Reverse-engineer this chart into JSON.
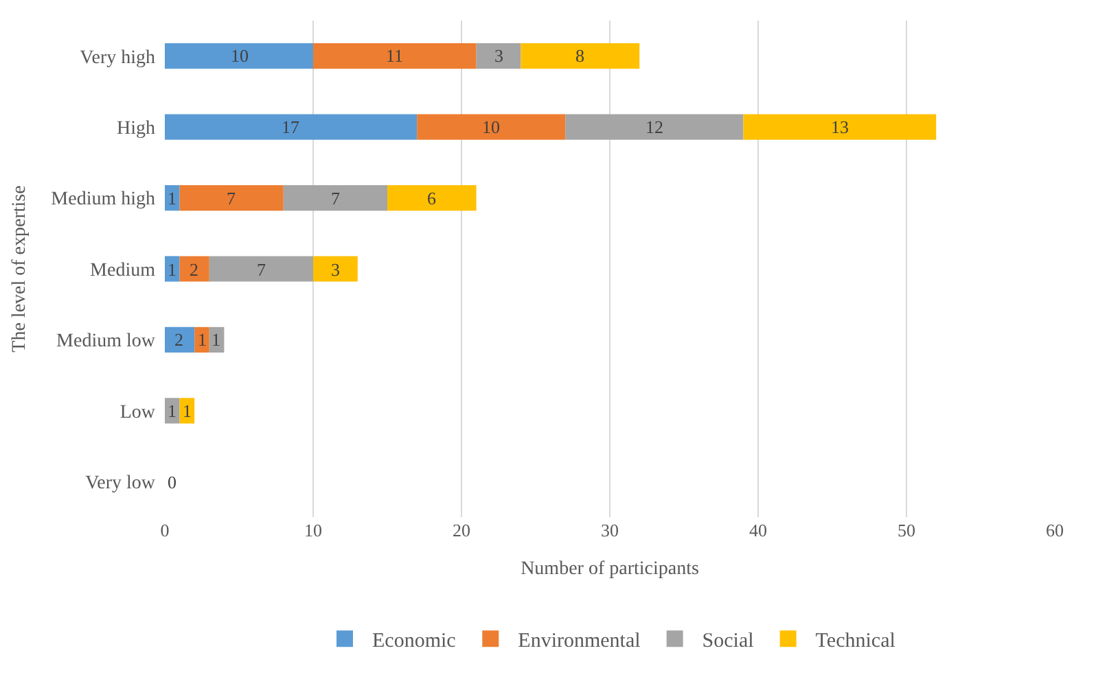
{
  "chart_data": {
    "type": "bar",
    "orientation": "horizontal",
    "stacked": true,
    "xlabel": "Number of participants",
    "ylabel": "The level of expertise",
    "categories": [
      "Very high",
      "High",
      "Medium high",
      "Medium",
      "Medium low",
      "Low",
      "Very low"
    ],
    "series": [
      {
        "name": "Economic",
        "color": "#5b9bd5",
        "values": [
          10,
          17,
          1,
          1,
          2,
          0,
          0
        ],
        "value_labels": [
          "10",
          "17",
          "1",
          "1",
          "2",
          null,
          null
        ]
      },
      {
        "name": "Environmental",
        "color": "#ed7d31",
        "values": [
          11,
          10,
          7,
          2,
          1,
          0,
          0
        ],
        "value_labels": [
          "11",
          "10",
          "7",
          "2",
          "1",
          null,
          null
        ]
      },
      {
        "name": "Social",
        "color": "#a5a5a5",
        "values": [
          3,
          12,
          7,
          7,
          1,
          1,
          0
        ],
        "value_labels": [
          "3",
          "12",
          "7",
          "7",
          "1",
          "1",
          null
        ]
      },
      {
        "name": "Technical",
        "color": "#ffc000",
        "values": [
          8,
          13,
          6,
          3,
          0,
          1,
          0
        ],
        "value_labels": [
          "8",
          "13",
          "6",
          "3",
          null,
          "1",
          "0"
        ]
      }
    ],
    "xlim": [
      0,
      60
    ],
    "xticks": [
      0,
      10,
      20,
      30,
      40,
      50,
      60
    ],
    "grid": "x",
    "legend": "bottom"
  }
}
